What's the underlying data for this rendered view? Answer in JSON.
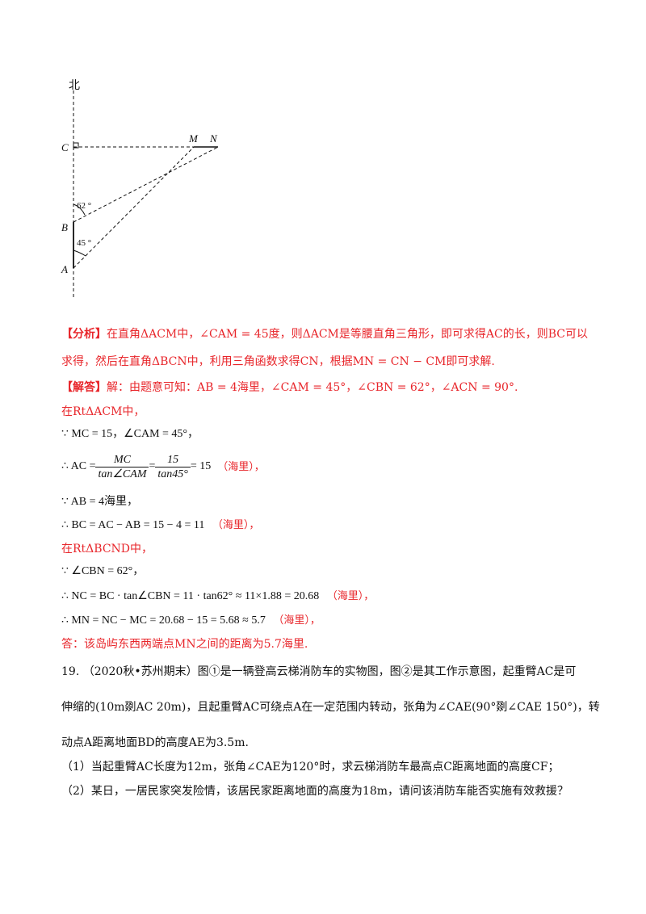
{
  "figure": {
    "north": "北",
    "C": "C",
    "M": "M",
    "N": "N",
    "B": "B",
    "A": "A",
    "angle_b": "62 °",
    "angle_a": "45 °"
  },
  "analysis": {
    "tag": "【分析】",
    "l1": "在直角ΔACM中，∠CAM = 45度，则ΔACM是等腰直角三角形，即可求得AC的长，则BC可以",
    "l2": "求得，然后在直角ΔBCN中，利用三角函数求得CN，根据MN = CN − CM即可求解."
  },
  "solution": {
    "tag": "【解答】",
    "l1": "解：由题意可知：AB = 4海里，∠CAM = 45°，∠CBN = 62°，∠ACN = 90°.",
    "l2": "在RtΔACM中，",
    "l3": "∵ MC = 15，∠CAM = 45°，",
    "l4_pre": "∴ AC =",
    "l4_num1": "MC",
    "l4_den1": "tan∠CAM",
    "l4_eq": "=",
    "l4_num2": "15",
    "l4_den2": "tan45°",
    "l4_post": "= 15",
    "l4_unit": "（海里），",
    "l5": "∵ AB = 4海里，",
    "l6": "∴ BC = AC − AB = 15 − 4 = 11",
    "l6_unit": "（海里），",
    "l7": "在RtΔBCND中，",
    "l8": "∵ ∠CBN = 62°，",
    "l9": "∴ NC = BC · tan∠CBN = 11 · tan62° ≈ 11×1.88 = 20.68",
    "l9_unit": "（海里），",
    "l10": "∴ MN = NC − MC = 20.68 − 15 = 5.68 ≈ 5.7",
    "l10_unit": "（海里），",
    "l11": "答：该岛屿东西两端点MN之间的距离为5.7海里."
  },
  "question": {
    "l1": "19. （2020秋•苏州期末）图①是一辆登高云梯消防车的实物图，图②是其工作示意图，起重臂AC是可",
    "l2": "伸缩的(10m剟AC 20m)，且起重臂AC可绕点A在一定范围内转动，张角为∠CAE(90°剟∠CAE 150°)，转",
    "l3": "动点A距离地面BD的高度AE为3.5m.",
    "l4": "（1）当起重臂AC长度为12m，张角∠CAE为120°时，求云梯消防车最高点C距离地面的高度CF；",
    "l5": "（2）某日，一居民家突发险情，该居民家距离地面的高度为18m，请问该消防车能否实施有效救援？"
  }
}
